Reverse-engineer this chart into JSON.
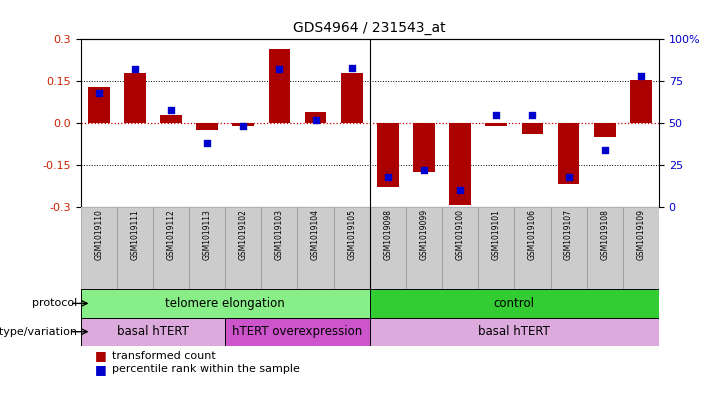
{
  "title": "GDS4964 / 231543_at",
  "samples": [
    "GSM1019110",
    "GSM1019111",
    "GSM1019112",
    "GSM1019113",
    "GSM1019102",
    "GSM1019103",
    "GSM1019104",
    "GSM1019105",
    "GSM1019098",
    "GSM1019099",
    "GSM1019100",
    "GSM1019101",
    "GSM1019106",
    "GSM1019107",
    "GSM1019108",
    "GSM1019109"
  ],
  "transformed_counts": [
    0.13,
    0.18,
    0.03,
    -0.025,
    -0.01,
    0.265,
    0.04,
    0.18,
    -0.23,
    -0.175,
    -0.295,
    -0.01,
    -0.04,
    -0.22,
    -0.05,
    0.155
  ],
  "percentile_ranks": [
    68,
    82,
    58,
    38,
    48,
    82,
    52,
    83,
    18,
    22,
    10,
    55,
    55,
    18,
    34,
    78
  ],
  "ylim": [
    -0.3,
    0.3
  ],
  "yticks": [
    -0.3,
    -0.15,
    0.0,
    0.15,
    0.3
  ],
  "right_yticks": [
    0,
    25,
    50,
    75,
    100
  ],
  "bar_color": "#aa0000",
  "dot_color": "#0000cc",
  "zero_line_color": "#cc0000",
  "grid_color": "#000000",
  "protocol_groups": [
    {
      "label": "telomere elongation",
      "start": 0,
      "end": 8,
      "color": "#88ee88"
    },
    {
      "label": "control",
      "start": 8,
      "end": 16,
      "color": "#33cc33"
    }
  ],
  "genotype_groups": [
    {
      "label": "basal hTERT",
      "start": 0,
      "end": 4,
      "color": "#ddaadd"
    },
    {
      "label": "hTERT overexpression",
      "start": 4,
      "end": 8,
      "color": "#cc55cc"
    },
    {
      "label": "basal hTERT",
      "start": 8,
      "end": 16,
      "color": "#ddaadd"
    }
  ],
  "legend_items": [
    {
      "color": "#aa0000",
      "label": "transformed count"
    },
    {
      "color": "#0000cc",
      "label": "percentile rank within the sample"
    }
  ],
  "sample_bg_color": "#cccccc",
  "left_label_protocol": "protocol",
  "left_label_genotype": "genotype/variation"
}
